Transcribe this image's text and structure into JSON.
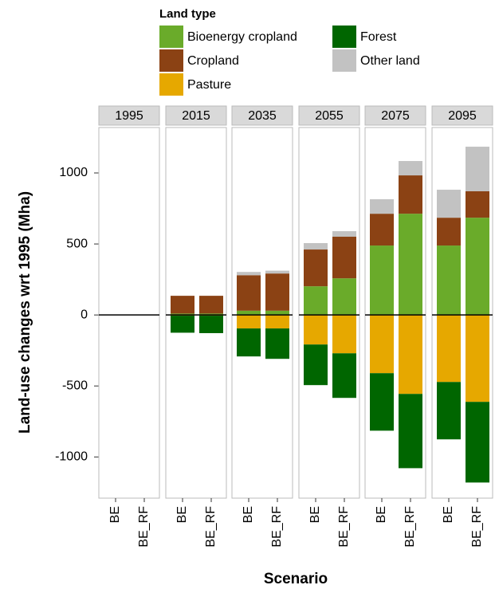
{
  "chart_data": {
    "type": "bar",
    "stacked": true,
    "legend_title": "Land type",
    "x_label": "Scenario",
    "y_label": "Land-use changes wrt 1995 (Mha)",
    "facets": [
      "1995",
      "2015",
      "2035",
      "2055",
      "2075",
      "2095"
    ],
    "categories": [
      "BE",
      "BE_RF",
      "BE",
      "BE_RF",
      "BE",
      "BE_RF",
      "BE",
      "BE_RF",
      "BE",
      "BE_RF",
      "BE",
      "BE_RF"
    ],
    "series": [
      {
        "name": "Bioenergy cropland",
        "color": "#6aab2a",
        "values": [
          0,
          0,
          10,
          10,
          30,
          30,
          202,
          258,
          489,
          713,
          489,
          685
        ]
      },
      {
        "name": "Cropland",
        "color": "#8b4214",
        "values": [
          0,
          0,
          125,
          125,
          250,
          262,
          259,
          293,
          224,
          270,
          196,
          186
        ]
      },
      {
        "name": "Pasture",
        "color": "#e6a800",
        "values": [
          0,
          0,
          -5,
          -5,
          -95,
          -95,
          -208,
          -270,
          -410,
          -556,
          -472,
          -612
        ]
      },
      {
        "name": "Forest",
        "color": "#006600",
        "values": [
          0,
          0,
          -120,
          -123,
          -197,
          -214,
          -286,
          -314,
          -405,
          -523,
          -404,
          -568
        ]
      },
      {
        "name": "Other land",
        "color": "#c2c2c2",
        "values": [
          0,
          0,
          0,
          0,
          23,
          20,
          45,
          39,
          102,
          101,
          197,
          314
        ]
      }
    ],
    "ylim": [
      -1290,
      1320
    ],
    "yticks": [
      -1000,
      -500,
      0,
      500,
      1000
    ],
    "grid": false
  }
}
